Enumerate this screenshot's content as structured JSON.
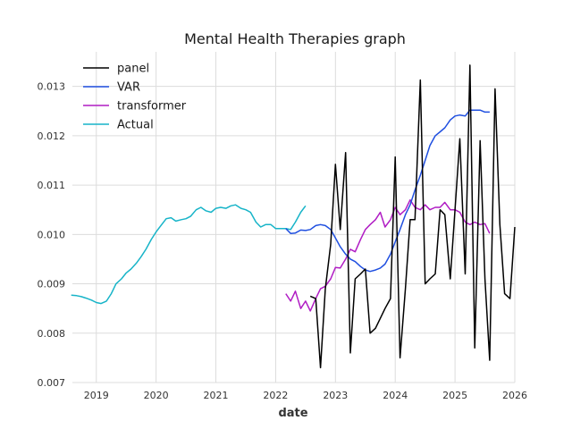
{
  "chart_data": {
    "type": "line",
    "title": "Mental Health Therapies graph",
    "xlabel": "date",
    "ylabel": "",
    "xlim": [
      2018.6,
      2026.0
    ],
    "ylim": [
      0.007,
      0.0137
    ],
    "grid": true,
    "legend_position": "top-left",
    "x_ticks": [
      {
        "v": 2019,
        "label": "2019"
      },
      {
        "v": 2020,
        "label": "2020"
      },
      {
        "v": 2021,
        "label": "2021"
      },
      {
        "v": 2022,
        "label": "2022"
      },
      {
        "v": 2023,
        "label": "2023"
      },
      {
        "v": 2024,
        "label": "2024"
      },
      {
        "v": 2025,
        "label": "2025"
      },
      {
        "v": 2026,
        "label": "2026"
      }
    ],
    "y_ticks": [
      {
        "v": 0.007,
        "label": "0.007"
      },
      {
        "v": 0.008,
        "label": "0.008"
      },
      {
        "v": 0.009,
        "label": "0.009"
      },
      {
        "v": 0.01,
        "label": "0.010"
      },
      {
        "v": 0.011,
        "label": "0.011"
      },
      {
        "v": 0.012,
        "label": "0.012"
      },
      {
        "v": 0.013,
        "label": "0.013"
      }
    ],
    "series": [
      {
        "name": "panel",
        "color": "#000000",
        "x": [
          2022.58,
          2022.67,
          2022.75,
          2022.83,
          2022.92,
          2023.0,
          2023.08,
          2023.17,
          2023.25,
          2023.33,
          2023.42,
          2023.5,
          2023.58,
          2023.67,
          2023.75,
          2023.83,
          2023.92,
          2024.0,
          2024.08,
          2024.17,
          2024.25,
          2024.33,
          2024.42,
          2024.5,
          2024.58,
          2024.67,
          2024.75,
          2024.83,
          2024.92,
          2025.0,
          2025.08,
          2025.17,
          2025.25,
          2025.33,
          2025.42,
          2025.5,
          2025.58,
          2025.67,
          2025.75,
          2025.83,
          2025.92,
          2026.0
        ],
        "y": [
          0.00875,
          0.0087,
          0.0073,
          0.0089,
          0.0098,
          0.01142,
          0.0101,
          0.01166,
          0.0076,
          0.0091,
          0.0092,
          0.0093,
          0.008,
          0.0081,
          0.0083,
          0.0085,
          0.0087,
          0.01157,
          0.0075,
          0.0089,
          0.0103,
          0.0103,
          0.01313,
          0.009,
          0.0091,
          0.0092,
          0.0105,
          0.0104,
          0.0091,
          0.0105,
          0.01194,
          0.0092,
          0.01343,
          0.0077,
          0.0119,
          0.0091,
          0.00745,
          0.01295,
          0.0102,
          0.0088,
          0.0087,
          0.01015
        ]
      },
      {
        "name": "VAR",
        "color": "#1f4fe0",
        "x": [
          2022.17,
          2022.25,
          2022.33,
          2022.42,
          2022.5,
          2022.58,
          2022.67,
          2022.75,
          2022.83,
          2022.92,
          2023.0,
          2023.08,
          2023.17,
          2023.25,
          2023.33,
          2023.42,
          2023.5,
          2023.58,
          2023.67,
          2023.75,
          2023.83,
          2023.92,
          2024.0,
          2024.08,
          2024.17,
          2024.25,
          2024.33,
          2024.42,
          2024.5,
          2024.58,
          2024.67,
          2024.75,
          2024.83,
          2024.92,
          2025.0,
          2025.08,
          2025.17,
          2025.25,
          2025.33,
          2025.42,
          2025.5,
          2025.58
        ],
        "y": [
          0.01012,
          0.01002,
          0.01003,
          0.01009,
          0.01008,
          0.0101,
          0.01018,
          0.0102,
          0.01018,
          0.0101,
          0.00993,
          0.00975,
          0.0096,
          0.0095,
          0.00945,
          0.00935,
          0.00928,
          0.00925,
          0.00928,
          0.00932,
          0.0094,
          0.0096,
          0.00985,
          0.0101,
          0.0104,
          0.0106,
          0.0109,
          0.0112,
          0.0115,
          0.0118,
          0.012,
          0.01208,
          0.01216,
          0.01232,
          0.0124,
          0.01242,
          0.0124,
          0.01252,
          0.01252,
          0.01252,
          0.01248,
          0.01248
        ]
      },
      {
        "name": "transformer",
        "color": "#b01cc4",
        "x": [
          2022.17,
          2022.25,
          2022.33,
          2022.42,
          2022.5,
          2022.58,
          2022.67,
          2022.75,
          2022.83,
          2022.92,
          2023.0,
          2023.08,
          2023.17,
          2023.25,
          2023.33,
          2023.42,
          2023.5,
          2023.58,
          2023.67,
          2023.75,
          2023.83,
          2023.92,
          2024.0,
          2024.08,
          2024.17,
          2024.25,
          2024.33,
          2024.42,
          2024.5,
          2024.58,
          2024.67,
          2024.75,
          2024.83,
          2024.92,
          2025.0,
          2025.08,
          2025.17,
          2025.25,
          2025.33,
          2025.42,
          2025.5,
          2025.58
        ],
        "y": [
          0.0088,
          0.00865,
          0.00885,
          0.0085,
          0.00865,
          0.00845,
          0.0087,
          0.0089,
          0.00895,
          0.0091,
          0.00933,
          0.00932,
          0.0095,
          0.0097,
          0.00965,
          0.0099,
          0.0101,
          0.0102,
          0.0103,
          0.01045,
          0.01015,
          0.0103,
          0.01055,
          0.0104,
          0.0105,
          0.0107,
          0.01055,
          0.0105,
          0.0106,
          0.0105,
          0.01055,
          0.01055,
          0.01065,
          0.0105,
          0.0105,
          0.01045,
          0.01025,
          0.0102,
          0.01025,
          0.0102,
          0.01022,
          0.01002
        ]
      },
      {
        "name": "Actual",
        "color": "#17b4c8",
        "x": [
          2018.58,
          2018.67,
          2018.75,
          2018.83,
          2018.92,
          2019.0,
          2019.08,
          2019.17,
          2019.25,
          2019.33,
          2019.42,
          2019.5,
          2019.58,
          2019.67,
          2019.75,
          2019.83,
          2019.92,
          2020.0,
          2020.08,
          2020.17,
          2020.25,
          2020.33,
          2020.42,
          2020.5,
          2020.58,
          2020.67,
          2020.75,
          2020.83,
          2020.92,
          2021.0,
          2021.08,
          2021.17,
          2021.25,
          2021.33,
          2021.42,
          2021.5,
          2021.58,
          2021.67,
          2021.75,
          2021.83,
          2021.92,
          2022.0,
          2022.08,
          2022.17,
          2022.25,
          2022.33,
          2022.42,
          2022.5
        ],
        "y": [
          0.00877,
          0.00876,
          0.00874,
          0.00871,
          0.00867,
          0.00862,
          0.0086,
          0.00865,
          0.0088,
          0.009,
          0.0091,
          0.00922,
          0.0093,
          0.00942,
          0.00955,
          0.0097,
          0.0099,
          0.01005,
          0.01018,
          0.01032,
          0.01034,
          0.01027,
          0.0103,
          0.01032,
          0.01037,
          0.0105,
          0.01055,
          0.01048,
          0.01045,
          0.01053,
          0.01055,
          0.01053,
          0.01058,
          0.0106,
          0.01053,
          0.0105,
          0.01045,
          0.01025,
          0.01015,
          0.0102,
          0.0102,
          0.01012,
          0.01012,
          0.01012,
          0.0101,
          0.01025,
          0.01045,
          0.01058
        ]
      }
    ]
  }
}
